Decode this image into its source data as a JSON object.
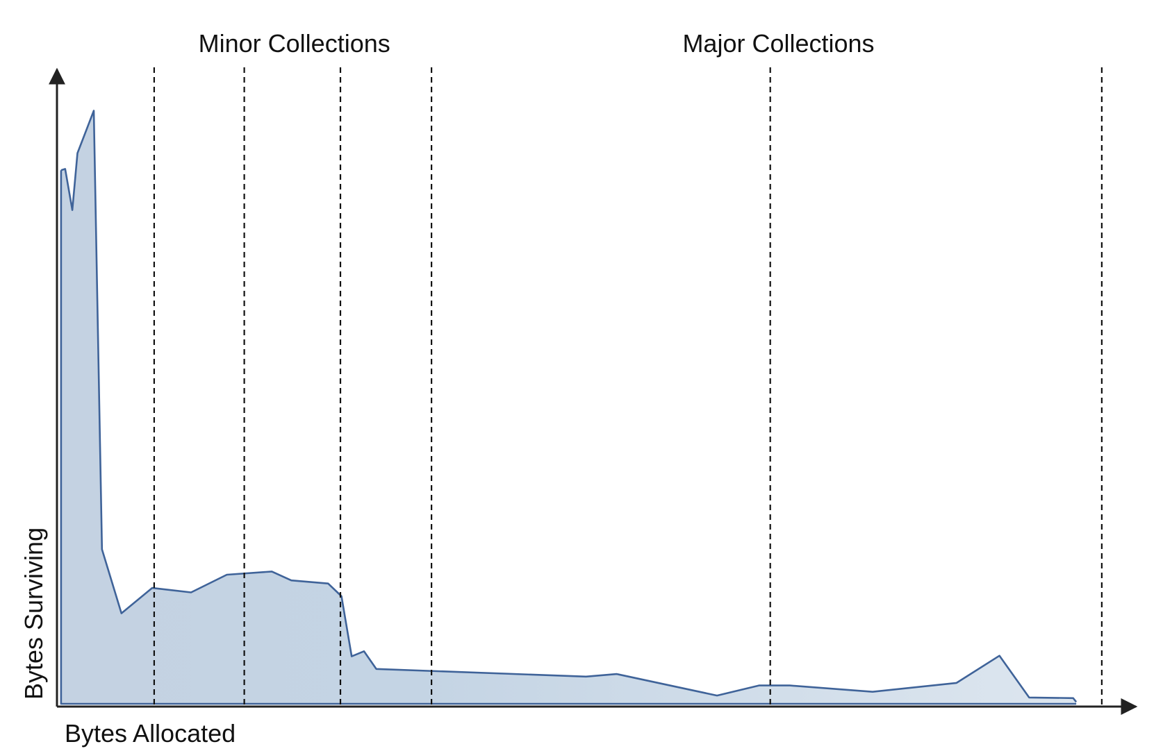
{
  "chart_data": {
    "type": "area",
    "title": "",
    "xlabel": "Bytes Allocated",
    "ylabel": "Bytes Surviving",
    "xlim": [
      0,
      100
    ],
    "ylim": [
      0,
      100
    ],
    "grid": false,
    "region_labels": [
      {
        "label": "Minor Collections",
        "x": 23.2
      },
      {
        "label": "Major Collections",
        "x": 70.5
      }
    ],
    "divider_x": [
      9.5,
      18.3,
      27.7,
      36.6,
      69.7,
      102.1
    ],
    "series": [
      {
        "values": [
          {
            "x": 0.4,
            "y": 84.3
          },
          {
            "x": 0.8,
            "y": 84.5
          },
          {
            "x": 1.5,
            "y": 78.0
          },
          {
            "x": 2.0,
            "y": 87.0
          },
          {
            "x": 3.6,
            "y": 93.7
          },
          {
            "x": 4.4,
            "y": 24.4
          },
          {
            "x": 6.3,
            "y": 14.3
          },
          {
            "x": 9.3,
            "y": 18.3
          },
          {
            "x": 13.1,
            "y": 17.6
          },
          {
            "x": 16.6,
            "y": 20.4
          },
          {
            "x": 21.0,
            "y": 20.9
          },
          {
            "x": 22.9,
            "y": 19.5
          },
          {
            "x": 26.5,
            "y": 19.0
          },
          {
            "x": 27.8,
            "y": 17.0
          },
          {
            "x": 28.8,
            "y": 7.5
          },
          {
            "x": 30.0,
            "y": 8.3
          },
          {
            "x": 31.2,
            "y": 5.5
          },
          {
            "x": 51.7,
            "y": 4.3
          },
          {
            "x": 54.7,
            "y": 4.7
          },
          {
            "x": 64.5,
            "y": 1.3
          },
          {
            "x": 68.6,
            "y": 2.9
          },
          {
            "x": 71.6,
            "y": 2.9
          },
          {
            "x": 79.7,
            "y": 1.9
          },
          {
            "x": 87.9,
            "y": 3.3
          },
          {
            "x": 92.1,
            "y": 7.6
          },
          {
            "x": 95.0,
            "y": 1.0
          },
          {
            "x": 99.3,
            "y": 0.9
          },
          {
            "x": 99.6,
            "y": 0.3
          }
        ]
      }
    ]
  }
}
